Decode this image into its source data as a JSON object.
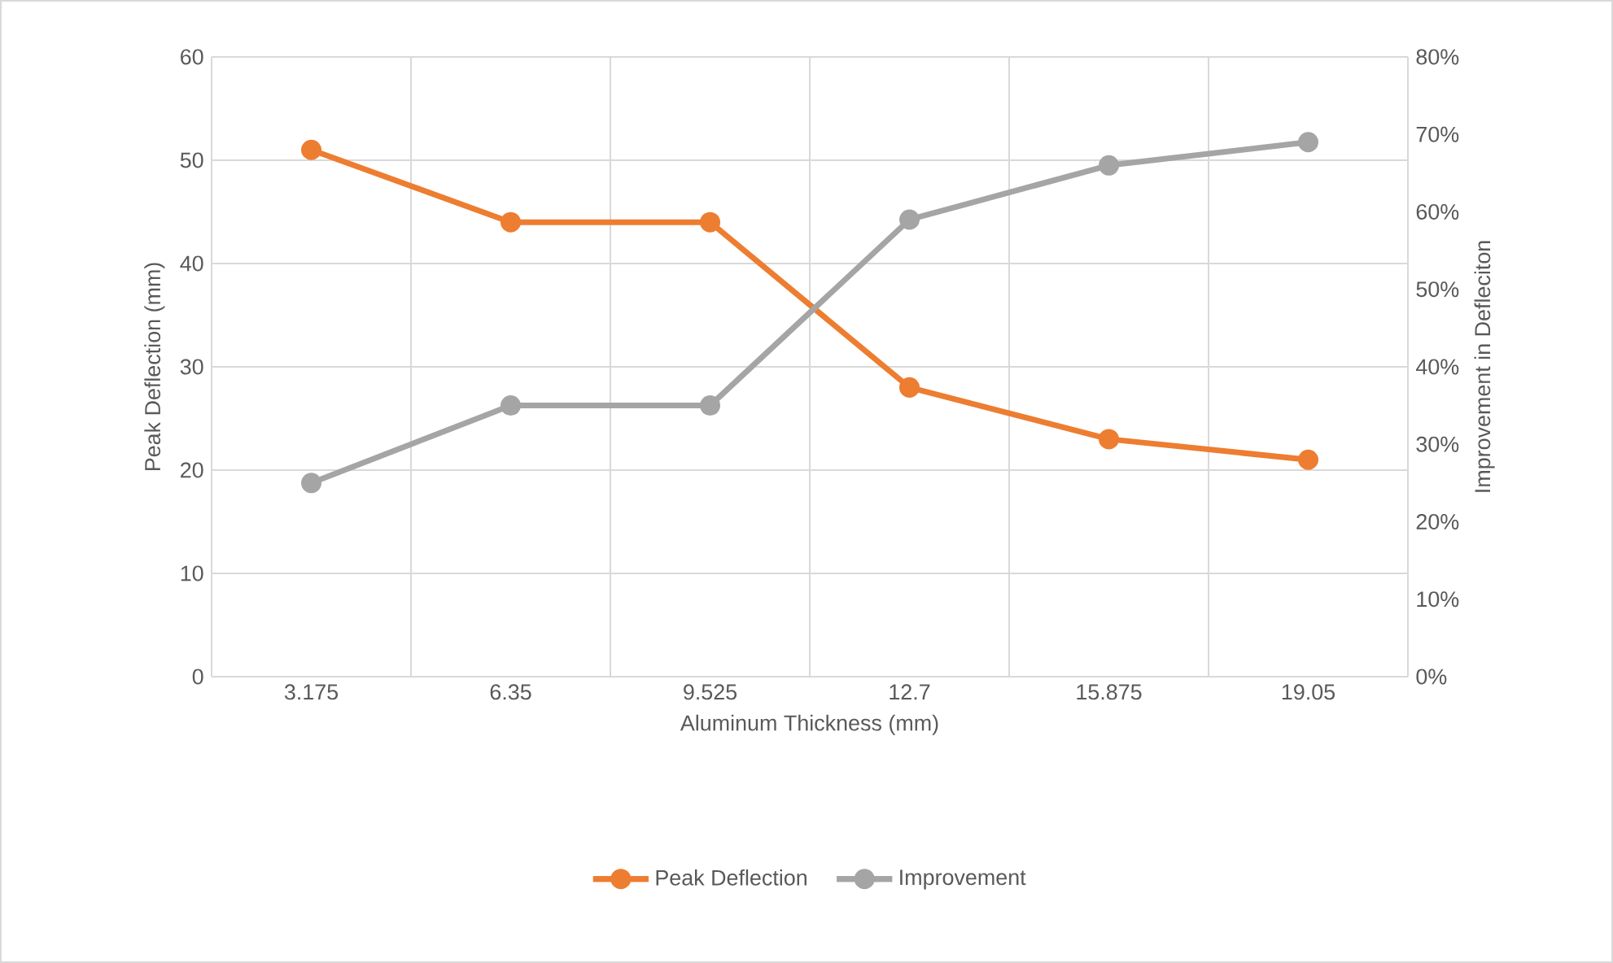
{
  "chart_data": {
    "type": "line",
    "xlabel": "Aluminum Thickness (mm)",
    "ylabel": "Peak Deflection (mm)",
    "y2label": "Improvement in Defleciton",
    "categories": [
      "3.175",
      "6.35",
      "9.525",
      "12.7",
      "15.875",
      "19.05"
    ],
    "series": [
      {
        "name": "Peak Deflection",
        "color": "#ed7d31",
        "values": [
          51,
          44,
          44,
          28,
          23,
          21
        ]
      },
      {
        "name": "Improvement",
        "color": "#a5a5a5",
        "axis": "y2",
        "values": [
          25,
          35,
          35,
          59,
          66,
          69
        ]
      }
    ],
    "ylim": [
      0,
      60
    ],
    "yticks": [
      0,
      10,
      20,
      30,
      40,
      50,
      60
    ],
    "y2lim": [
      0,
      80
    ],
    "y2ticks": [
      {
        "value": 0,
        "label": "0%"
      },
      {
        "value": 10,
        "label": "10%"
      },
      {
        "value": 20,
        "label": "20%"
      },
      {
        "value": 30,
        "label": "30%"
      },
      {
        "value": 40,
        "label": "40%"
      },
      {
        "value": 50,
        "label": "50%"
      },
      {
        "value": 60,
        "label": "60%"
      },
      {
        "value": 70,
        "label": "70%"
      },
      {
        "value": 80,
        "label": "80%"
      }
    ],
    "grid": true,
    "legend": "bottom",
    "marker": "circle",
    "line_style": "solid"
  }
}
